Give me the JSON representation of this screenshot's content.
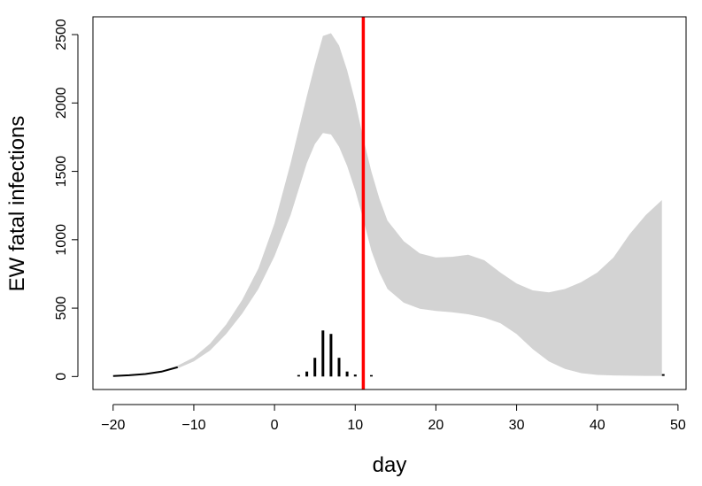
{
  "chart_data": {
    "type": "area",
    "xlabel": "day",
    "ylabel": "EW fatal infections",
    "xlim": [
      -22.5,
      51
    ],
    "ylim": [
      -95,
      2630
    ],
    "x_ticks": [
      -20,
      -10,
      0,
      10,
      20,
      30,
      40,
      50
    ],
    "x_tick_labels": [
      "−20",
      "−10",
      "0",
      "10",
      "20",
      "30",
      "40",
      "50"
    ],
    "y_ticks": [
      0,
      500,
      1000,
      1500,
      2000,
      2500
    ],
    "y_tick_labels": [
      "0",
      "500",
      "1000",
      "1500",
      "2000",
      "2500"
    ],
    "band_color": "#d3d3d3",
    "vline_color": "#ff0000",
    "vline_x": 11,
    "band": {
      "x": [
        -20,
        -18,
        -16,
        -14,
        -12,
        -10,
        -8,
        -6,
        -4,
        -2,
        0,
        2,
        4,
        5,
        6,
        7,
        8,
        9,
        10,
        11,
        12,
        13,
        14,
        16,
        18,
        20,
        22,
        24,
        26,
        28,
        30,
        32,
        34,
        36,
        38,
        40,
        42,
        44,
        46,
        48
      ],
      "lower": [
        2,
        6,
        14,
        30,
        60,
        110,
        190,
        310,
        460,
        640,
        880,
        1180,
        1560,
        1700,
        1780,
        1770,
        1680,
        1540,
        1360,
        1150,
        920,
        760,
        640,
        540,
        495,
        480,
        470,
        455,
        430,
        390,
        310,
        200,
        110,
        55,
        25,
        12,
        8,
        6,
        5,
        5
      ],
      "upper": [
        8,
        14,
        24,
        42,
        80,
        140,
        240,
        380,
        560,
        790,
        1120,
        1560,
        2050,
        2280,
        2490,
        2510,
        2420,
        2240,
        2010,
        1740,
        1500,
        1300,
        1140,
        990,
        900,
        870,
        875,
        890,
        850,
        760,
        680,
        630,
        615,
        640,
        690,
        760,
        870,
        1040,
        1180,
        1290
      ]
    },
    "central_line": {
      "x": [
        -20,
        -18,
        -16,
        -14,
        -12
      ],
      "y": [
        4,
        9,
        18,
        36,
        68
      ]
    },
    "spikes": {
      "x": [
        3,
        4,
        5,
        6,
        7,
        8,
        9,
        10,
        12
      ],
      "y": [
        5,
        30,
        130,
        330,
        305,
        130,
        30,
        8,
        4
      ]
    },
    "end_mark": {
      "x": 48,
      "y": 5
    }
  }
}
